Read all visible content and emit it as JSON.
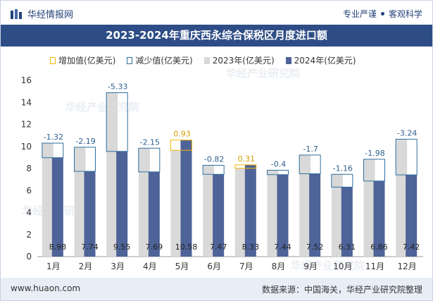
{
  "header": {
    "brand": "华经情报网",
    "tagline_left": "专业严谨",
    "tagline_right": "客观科学"
  },
  "title": "2023-2024年重庆西永综合保税区月度进口额",
  "legend": {
    "increase": "增加值(亿美元)",
    "decrease": "减少值(亿美元)",
    "y2023": "2023年(亿美元)",
    "y2024": "2024年(亿美元)"
  },
  "footer": {
    "url": "www.huaon.com",
    "source": "数据来源：中国海关，华经产业研究院整理"
  },
  "watermark": "华经产业研究院",
  "colors": {
    "title_bg": "#2e4d86",
    "bar_2023": "#d9d9d9",
    "bar_2024": "#4e6398",
    "increase": "#f2b705",
    "decrease": "#2f6f9f"
  },
  "chart_data": {
    "type": "bar",
    "categories": [
      "1月",
      "2月",
      "3月",
      "4月",
      "5月",
      "6月",
      "7月",
      "8月",
      "9月",
      "10月",
      "11月",
      "12月"
    ],
    "series": [
      {
        "name": "2023年(亿美元)",
        "values": [
          10.3,
          9.93,
          14.88,
          9.84,
          9.65,
          8.29,
          8.02,
          7.84,
          9.22,
          7.47,
          8.84,
          10.66
        ]
      },
      {
        "name": "2024年(亿美元)",
        "values": [
          8.98,
          7.74,
          9.55,
          7.69,
          10.58,
          7.47,
          8.33,
          7.44,
          7.52,
          6.31,
          6.86,
          7.42
        ]
      }
    ],
    "changes": [
      "-1.32",
      "-2.19",
      "-5.33",
      "-2.15",
      "0.93",
      "-0.82",
      "0.31",
      "-0.4",
      "-1.7",
      "-1.16",
      "-1.98",
      "-3.24"
    ],
    "value_labels_2024": [
      "8.98",
      "7.74",
      "9.55",
      "7.69",
      "10.58",
      "7.47",
      "8.33",
      "7.44",
      "7.52",
      "6.31",
      "6.86",
      "7.42"
    ],
    "y_ticks": [
      "0",
      "2",
      "4",
      "6",
      "8",
      "10",
      "12",
      "14",
      "16"
    ],
    "ylim": [
      0,
      16
    ],
    "grid": false,
    "legend_position": "top"
  }
}
